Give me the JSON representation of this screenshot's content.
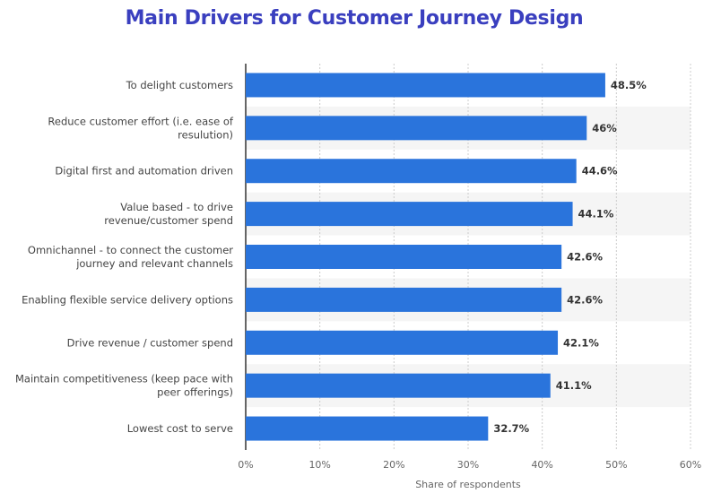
{
  "chart_data": {
    "type": "bar",
    "orientation": "horizontal",
    "title": "Main Drivers for Customer Journey Design",
    "categories": [
      [
        "To delight customers"
      ],
      [
        "Reduce customer effort (i.e. ease of",
        "resulution)"
      ],
      [
        "Digital first and automation driven"
      ],
      [
        "Value based - to drive",
        "revenue/customer spend"
      ],
      [
        "Omnichannel - to connect the customer",
        "journey and relevant channels"
      ],
      [
        "Enabling flexible service delivery options"
      ],
      [
        "Drive revenue / customer spend"
      ],
      [
        "Maintain competitiveness (keep pace with",
        "peer offerings)"
      ],
      [
        "Lowest cost to serve"
      ]
    ],
    "values": [
      48.5,
      46,
      44.6,
      44.1,
      42.6,
      42.6,
      42.1,
      41.1,
      32.7
    ],
    "value_labels": [
      "48.5%",
      "46%",
      "44.6%",
      "44.1%",
      "42.6%",
      "42.6%",
      "42.1%",
      "41.1%",
      "32.7%"
    ],
    "xlim": [
      0,
      60
    ],
    "xticks": [
      0,
      10,
      20,
      30,
      40,
      50,
      60
    ],
    "xtick_labels": [
      "0%",
      "10%",
      "20%",
      "30%",
      "40%",
      "50%",
      "60%"
    ],
    "xlabel": "Share of respondents",
    "ylabel": "",
    "grid": true,
    "colors": {
      "bar": "#2a74dc",
      "title": "#3a3fbf",
      "stripe": "#f5f5f5",
      "grid": "#cccccc"
    }
  }
}
